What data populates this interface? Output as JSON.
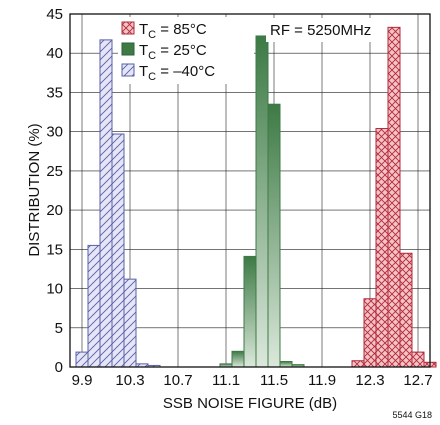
{
  "chart_data": {
    "type": "bar",
    "xlabel": "SSB NOISE FIGURE (dB)",
    "ylabel": "DISTRIBUTION (%)",
    "ylim": [
      0,
      45
    ],
    "xlim": [
      9.8,
      12.8
    ],
    "bin_width": 0.1,
    "x_ticks": [
      "9.9",
      "10.3",
      "10.7",
      "11.1",
      "11.5",
      "11.9",
      "12.3",
      "12.7"
    ],
    "y_ticks": [
      "0",
      "5",
      "10",
      "15",
      "20",
      "25",
      "30",
      "35",
      "40",
      "45"
    ],
    "grid": true,
    "legend_position": "top-left",
    "annotation": "RF = 5250MHz",
    "figure_code": "5544 G18",
    "series": [
      {
        "name": "TC = 85°C",
        "name_main": "T",
        "name_sub": "C",
        "name_rest": " = 85°C",
        "color": "#b22a3a",
        "fill": "#f2bfc3",
        "pattern": "crosshatch",
        "x": [
          12.2,
          12.3,
          12.4,
          12.5,
          12.6,
          12.7,
          12.8
        ],
        "values": [
          0.8,
          8.7,
          30.4,
          43.3,
          14.5,
          1.9,
          0.6
        ]
      },
      {
        "name": "TC = 25°C",
        "name_main": "T",
        "name_sub": "C",
        "name_rest": " = 25°C",
        "color": "#3d7a45",
        "fill": "#c7dbc7",
        "pattern": "gradient",
        "x": [
          11.1,
          11.2,
          11.3,
          11.4,
          11.5,
          11.6,
          11.7
        ],
        "values": [
          0.4,
          2.0,
          14.1,
          42.2,
          33.5,
          0.7,
          0.3
        ]
      },
      {
        "name": "TC = –40°C",
        "name_main": "T",
        "name_sub": "C",
        "name_rest": " = –40°C",
        "color": "#5a5fa8",
        "fill": "#cfd1ee",
        "pattern": "diagonal",
        "x": [
          9.9,
          10.0,
          10.1,
          10.2,
          10.3,
          10.4,
          10.5
        ],
        "values": [
          1.9,
          15.5,
          41.7,
          29.7,
          11.2,
          0.4,
          0.2
        ]
      }
    ]
  }
}
